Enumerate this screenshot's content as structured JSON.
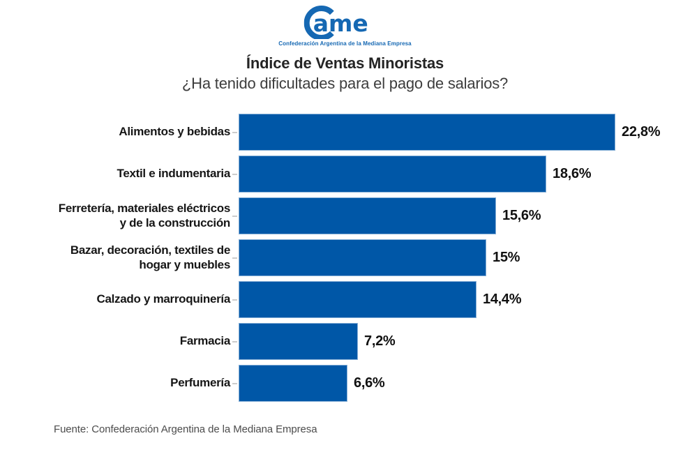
{
  "logo": {
    "name": "CAME",
    "wordmark": "ame",
    "tagline": "Confederación Argentina de la Mediana Empresa",
    "color": "#1568b3"
  },
  "header": {
    "title": "Índice de Ventas Minoristas",
    "subtitle": "¿Ha tenido dificultades para el pago de salarios?"
  },
  "footer": {
    "source": "Fuente: Confederación Argentina de la Mediana Empresa"
  },
  "chart_data": {
    "type": "bar",
    "orientation": "horizontal",
    "title": "Índice de Ventas Minoristas",
    "subtitle": "¿Ha tenido dificultades para el pago de salarios?",
    "categories": [
      "Alimentos y bebidas",
      "Textil e indumentaria",
      "Ferretería, materiales eléctricos\ny de la construcción",
      "Bazar, decoración, textiles de\nhogar y muebles",
      "Calzado y marroquinería",
      "Farmacia",
      "Perfumería"
    ],
    "values": [
      22.8,
      18.6,
      15.6,
      15.0,
      14.4,
      7.2,
      6.6
    ],
    "value_labels": [
      "22,8%",
      "18,6%",
      "15,6%",
      "15%",
      "14,4%",
      "7,2%",
      "6,6%"
    ],
    "xlim": [
      0,
      22.8
    ],
    "grid": false,
    "legend": false,
    "bar_color": "#0057a7",
    "bar_border_color": "#85aed6",
    "source": "Fuente: Confederación Argentina de la Mediana Empresa"
  }
}
